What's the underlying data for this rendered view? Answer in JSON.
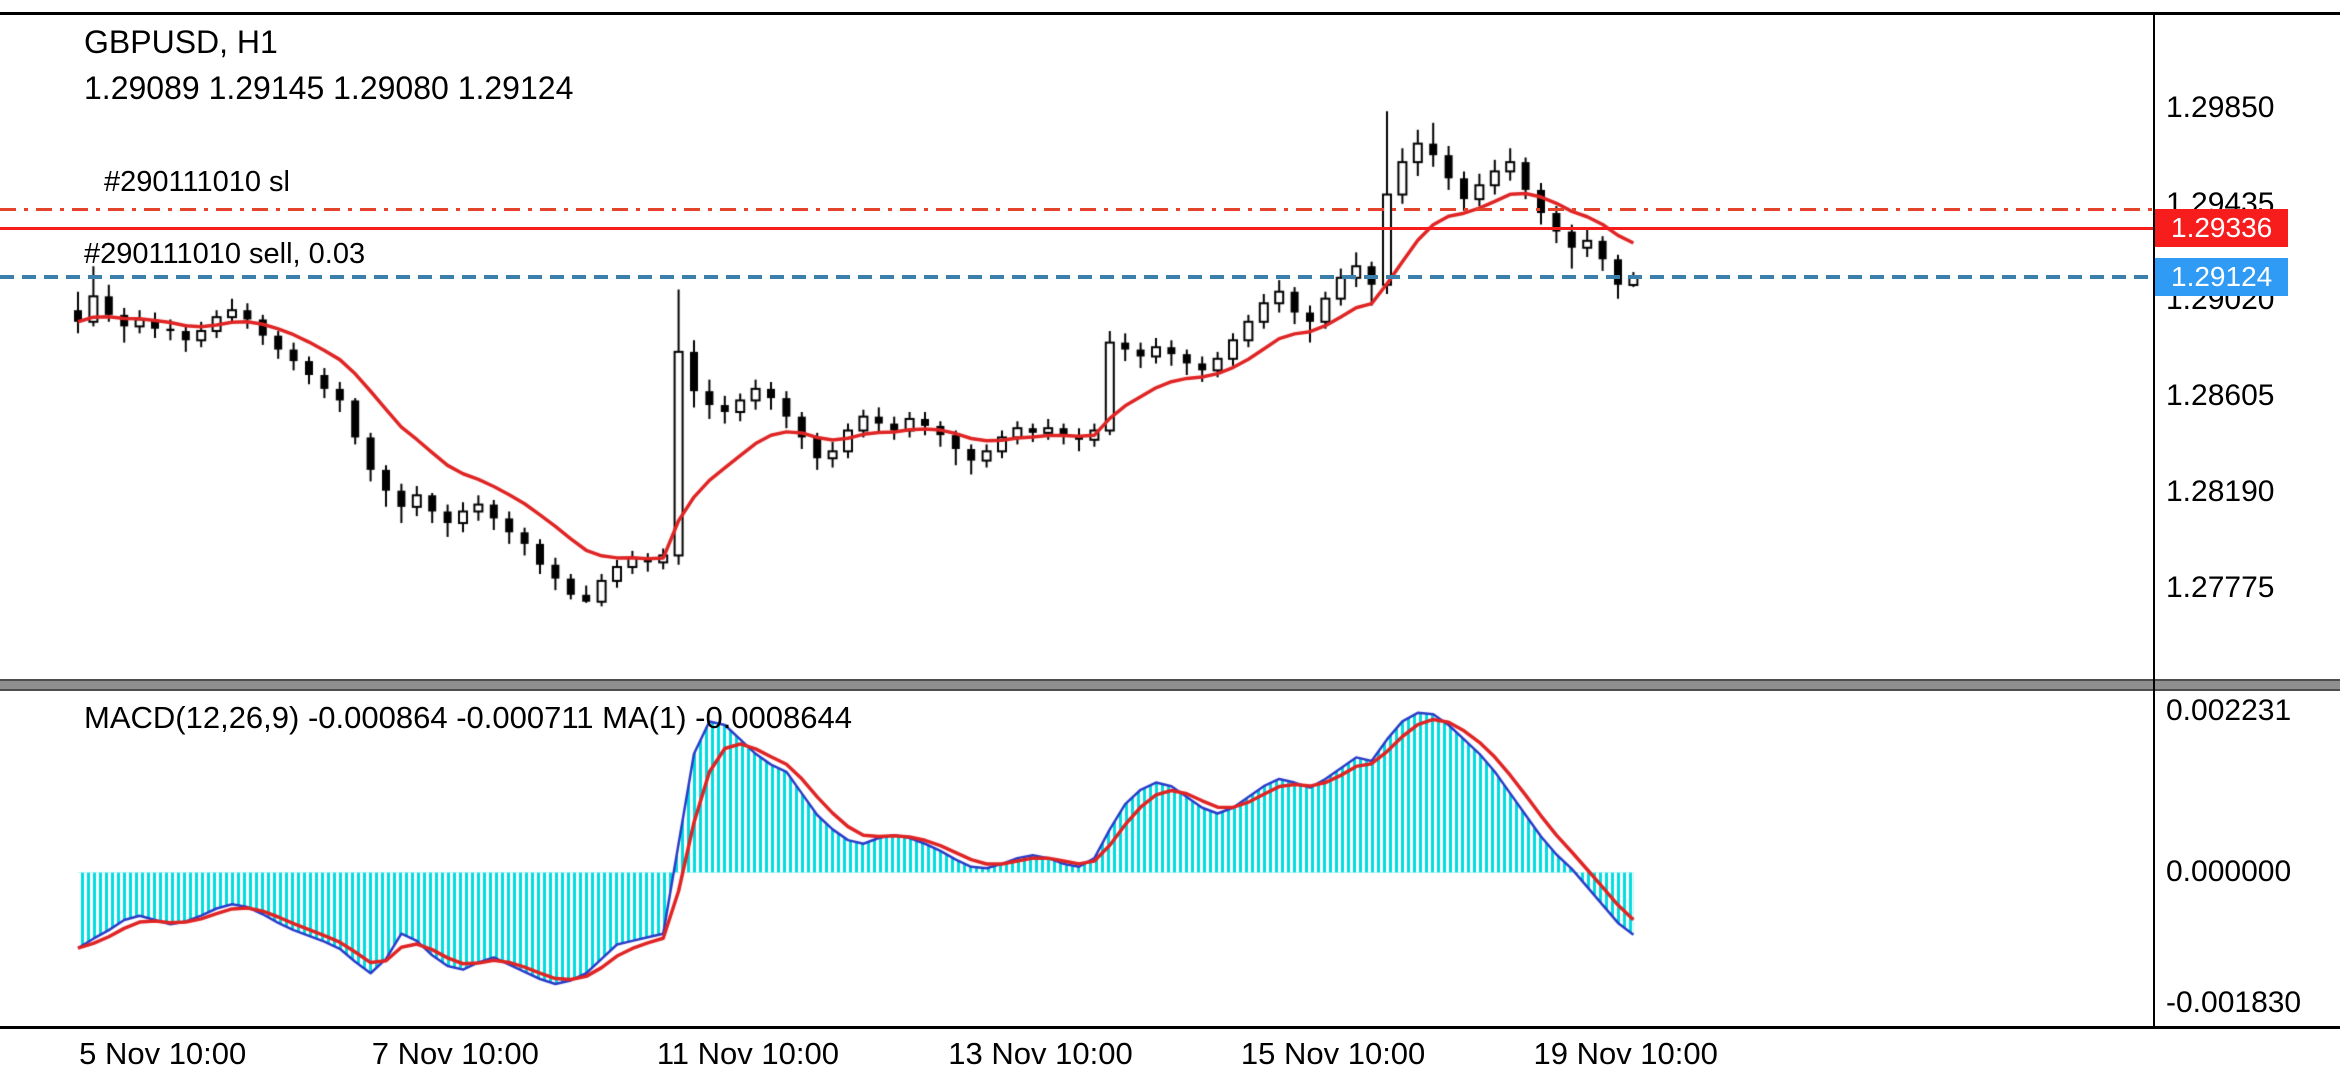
{
  "header": {
    "symbol": "GBPUSD, H1",
    "ohlc": "1.29089 1.29145 1.29080 1.29124"
  },
  "positions": {
    "sl_label": "#290111010 sl",
    "position_label": "#290111010 sell, 0.03",
    "sl_price": 1.29418,
    "open_price": 1.29336,
    "open_tag": "1.29336",
    "bid_price": 1.29124,
    "bid_tag": "1.29124",
    "colors": {
      "sl_line": "#e4442c",
      "open_line": "#f71d1d",
      "open_tag_bg": "#f71d1d",
      "bid_line": "#3b7fad",
      "bid_tag_bg": "#2f9bf5"
    }
  },
  "chart_data": [
    {
      "type": "candlestick",
      "panel": "price",
      "title": "GBPUSD, H1",
      "ylim": [
        1.27386,
        1.30256
      ],
      "y_ticks": [
        "1.29850",
        "1.29435",
        "1.29020",
        "1.28605",
        "1.28190",
        "1.27775"
      ],
      "x_ticks": {
        "labels": [
          "5 Nov 10:00",
          "7 Nov 10:00",
          "11 Nov 10:00",
          "13 Nov 10:00",
          "15 Nov 10:00",
          "19 Nov 10:00"
        ],
        "slots": [
          5.5,
          24.5,
          43.5,
          62.5,
          81.5,
          100.5
        ]
      },
      "ma": {
        "period": 10,
        "color": "#e02424"
      },
      "colors": {
        "up_fill": "#ffffff",
        "down_fill": "#000000",
        "outline": "#000000"
      },
      "candles": [
        [
          1.2898,
          1.2906,
          1.2888,
          1.2893
        ],
        [
          1.2893,
          1.2917,
          1.2891,
          1.2904
        ],
        [
          1.2904,
          1.2909,
          1.2893,
          1.2896
        ],
        [
          1.2896,
          1.2899,
          1.2884,
          1.2891
        ],
        [
          1.2891,
          1.2898,
          1.2888,
          1.2894
        ],
        [
          1.2894,
          1.2897,
          1.2886,
          1.289
        ],
        [
          1.289,
          1.2894,
          1.2885,
          1.2889
        ],
        [
          1.2889,
          1.2892,
          1.288,
          1.2885
        ],
        [
          1.2885,
          1.2893,
          1.2882,
          1.2889
        ],
        [
          1.2889,
          1.2898,
          1.2886,
          1.2895
        ],
        [
          1.2895,
          1.2903,
          1.2892,
          1.2898
        ],
        [
          1.2898,
          1.2901,
          1.289,
          1.2894
        ],
        [
          1.2894,
          1.2896,
          1.2883,
          1.2887
        ],
        [
          1.2887,
          1.2889,
          1.2877,
          1.2881
        ],
        [
          1.2881,
          1.2884,
          1.2872,
          1.2876
        ],
        [
          1.2876,
          1.2878,
          1.2866,
          1.287
        ],
        [
          1.287,
          1.2873,
          1.286,
          1.2864
        ],
        [
          1.2864,
          1.2867,
          1.2854,
          1.2859
        ],
        [
          1.2859,
          1.286,
          1.284,
          1.2843
        ],
        [
          1.2843,
          1.2845,
          1.2824,
          1.2829
        ],
        [
          1.2829,
          1.2831,
          1.2813,
          1.282
        ],
        [
          1.282,
          1.2823,
          1.2806,
          1.2813
        ],
        [
          1.2813,
          1.2822,
          1.2809,
          1.2818
        ],
        [
          1.2818,
          1.2819,
          1.2806,
          1.2811
        ],
        [
          1.2811,
          1.2814,
          1.28,
          1.2806
        ],
        [
          1.2806,
          1.2815,
          1.2802,
          1.2811
        ],
        [
          1.2811,
          1.2818,
          1.2807,
          1.2814
        ],
        [
          1.2814,
          1.2816,
          1.2803,
          1.2808
        ],
        [
          1.2808,
          1.2811,
          1.2797,
          1.2802
        ],
        [
          1.2802,
          1.2804,
          1.2792,
          1.2797
        ],
        [
          1.2797,
          1.2799,
          1.2784,
          1.2788
        ],
        [
          1.2788,
          1.2791,
          1.2777,
          1.2782
        ],
        [
          1.2782,
          1.2784,
          1.2773,
          1.2775
        ],
        [
          1.2775,
          1.2779,
          1.27715,
          1.2772
        ],
        [
          1.2772,
          1.2784,
          1.277,
          1.2781
        ],
        [
          1.2781,
          1.279,
          1.2778,
          1.2787
        ],
        [
          1.2787,
          1.2794,
          1.2784,
          1.2791
        ],
        [
          1.2791,
          1.2793,
          1.2785,
          1.2789
        ],
        [
          1.2789,
          1.2795,
          1.2786,
          1.2792
        ],
        [
          1.2792,
          1.2907,
          1.2788,
          1.288
        ],
        [
          1.288,
          1.2885,
          1.2856,
          1.2863
        ],
        [
          1.2863,
          1.2868,
          1.2851,
          1.2857
        ],
        [
          1.2857,
          1.2861,
          1.2849,
          1.2854
        ],
        [
          1.2854,
          1.2862,
          1.285,
          1.2859
        ],
        [
          1.2859,
          1.2868,
          1.2855,
          1.2864
        ],
        [
          1.2864,
          1.2867,
          1.2855,
          1.286
        ],
        [
          1.286,
          1.2863,
          1.2847,
          1.2852
        ],
        [
          1.2852,
          1.2854,
          1.2838,
          1.2843
        ],
        [
          1.2843,
          1.2845,
          1.2829,
          1.2834
        ],
        [
          1.2834,
          1.2841,
          1.283,
          1.2837
        ],
        [
          1.2837,
          1.2849,
          1.2834,
          1.2846
        ],
        [
          1.2846,
          1.2855,
          1.2843,
          1.2852
        ],
        [
          1.2852,
          1.2856,
          1.2845,
          1.2849
        ],
        [
          1.2849,
          1.2852,
          1.2842,
          1.2846
        ],
        [
          1.2846,
          1.2854,
          1.2843,
          1.2851
        ],
        [
          1.2851,
          1.2854,
          1.2844,
          1.2848
        ],
        [
          1.2848,
          1.285,
          1.2839,
          1.2844
        ],
        [
          1.2844,
          1.2846,
          1.2831,
          1.2838
        ],
        [
          1.2838,
          1.284,
          1.2827,
          1.2833
        ],
        [
          1.2833,
          1.284,
          1.283,
          1.2837
        ],
        [
          1.2837,
          1.2846,
          1.2834,
          1.2843
        ],
        [
          1.2843,
          1.285,
          1.284,
          1.2847
        ],
        [
          1.2847,
          1.2849,
          1.2841,
          1.2845
        ],
        [
          1.2845,
          1.2851,
          1.2842,
          1.2847
        ],
        [
          1.2847,
          1.2849,
          1.284,
          1.2844
        ],
        [
          1.2844,
          1.2847,
          1.2837,
          1.2842
        ],
        [
          1.2842,
          1.2849,
          1.2839,
          1.2846
        ],
        [
          1.2846,
          1.2889,
          1.2844,
          1.2884
        ],
        [
          1.2884,
          1.2888,
          1.2876,
          1.2881
        ],
        [
          1.2881,
          1.2884,
          1.2873,
          1.2878
        ],
        [
          1.2878,
          1.2886,
          1.2875,
          1.2882
        ],
        [
          1.2882,
          1.2885,
          1.2874,
          1.2879
        ],
        [
          1.2879,
          1.2881,
          1.287,
          1.2875
        ],
        [
          1.2875,
          1.2878,
          1.2867,
          1.2872
        ],
        [
          1.2872,
          1.288,
          1.2869,
          1.2877
        ],
        [
          1.2877,
          1.2888,
          1.2874,
          1.2885
        ],
        [
          1.2885,
          1.2896,
          1.2882,
          1.2893
        ],
        [
          1.2893,
          1.2905,
          1.289,
          1.2901
        ],
        [
          1.2901,
          1.2911,
          1.2897,
          1.2906
        ],
        [
          1.2906,
          1.2908,
          1.2892,
          1.2897
        ],
        [
          1.2897,
          1.29,
          1.2884,
          1.2893
        ],
        [
          1.2893,
          1.2906,
          1.289,
          1.2903
        ],
        [
          1.2903,
          1.2916,
          1.29,
          1.2912
        ],
        [
          1.2912,
          1.2923,
          1.2908,
          1.2917
        ],
        [
          1.2917,
          1.2919,
          1.29,
          1.2909
        ],
        [
          1.2909,
          1.2984,
          1.2905,
          1.2948
        ],
        [
          1.2948,
          1.2968,
          1.2944,
          1.2962
        ],
        [
          1.2962,
          1.2976,
          1.2956,
          1.297
        ],
        [
          1.297,
          1.2979,
          1.296,
          1.2965
        ],
        [
          1.2965,
          1.2969,
          1.295,
          1.2955
        ],
        [
          1.2955,
          1.2958,
          1.2941,
          1.2946
        ],
        [
          1.2946,
          1.2957,
          1.2943,
          1.2952
        ],
        [
          1.2952,
          1.2963,
          1.2948,
          1.2958
        ],
        [
          1.2958,
          1.2968,
          1.2954,
          1.2962
        ],
        [
          1.2962,
          1.2964,
          1.2946,
          1.295
        ],
        [
          1.295,
          1.2953,
          1.2935,
          1.294
        ],
        [
          1.294,
          1.2943,
          1.2927,
          1.2932
        ],
        [
          1.2932,
          1.2935,
          1.2916,
          1.2925
        ],
        [
          1.2925,
          1.2933,
          1.2921,
          1.2928
        ],
        [
          1.2928,
          1.293,
          1.2915,
          1.292
        ],
        [
          1.292,
          1.2922,
          1.2903,
          1.2909
        ],
        [
          1.29089,
          1.29145,
          1.2908,
          1.29124
        ]
      ]
    },
    {
      "type": "bar",
      "panel": "macd",
      "label": "MACD(12,26,9) -0.000864 -0.000711 MA(1) -0.0008644",
      "current_values": {
        "macd": -0.000864,
        "signal": -0.000711,
        "ma1": -0.0008644
      },
      "ylim": [
        -0.002161,
        0.002523
      ],
      "y_ticks": [
        "0.002231",
        "0.000000",
        "-0.001830"
      ],
      "signal_period": 3,
      "colors": {
        "histogram": "#00dce0",
        "macd_line": "#2a3cc8",
        "signal_line": "#e02424"
      },
      "values": [
        -0.00105,
        -0.00092,
        -0.0008,
        -0.00066,
        -0.0006,
        -0.00066,
        -0.00072,
        -0.00068,
        -0.0006,
        -0.0005,
        -0.00044,
        -0.00048,
        -0.00058,
        -0.0007,
        -0.0008,
        -0.00088,
        -0.00096,
        -0.00106,
        -0.00124,
        -0.0014,
        -0.0012,
        -0.00085,
        -0.00095,
        -0.00115,
        -0.0013,
        -0.00135,
        -0.00125,
        -0.00118,
        -0.00128,
        -0.00138,
        -0.00148,
        -0.00155,
        -0.0015,
        -0.0014,
        -0.0012,
        -0.001,
        -0.00095,
        -0.0009,
        -0.00085,
        0.0004,
        0.00165,
        0.0021,
        0.00205,
        0.00185,
        0.00165,
        0.0015,
        0.0014,
        0.0011,
        0.0008,
        0.0006,
        0.00045,
        0.0004,
        0.00048,
        0.00052,
        0.00048,
        0.0004,
        0.0003,
        0.00018,
        8e-05,
        6e-05,
        0.00012,
        0.0002,
        0.00024,
        0.0002,
        0.00012,
        8e-05,
        0.0002,
        0.0006,
        0.00095,
        0.00115,
        0.00125,
        0.0012,
        0.00105,
        0.0009,
        0.00082,
        0.0009,
        0.00105,
        0.0012,
        0.0013,
        0.00125,
        0.00118,
        0.0013,
        0.00145,
        0.0016,
        0.00155,
        0.00185,
        0.0021,
        0.00222,
        0.0022,
        0.00205,
        0.00185,
        0.00165,
        0.0014,
        0.0011,
        0.0008,
        0.0005,
        0.00025,
        5e-05,
        -0.0002,
        -0.00045,
        -0.0007,
        -0.000864
      ]
    }
  ]
}
